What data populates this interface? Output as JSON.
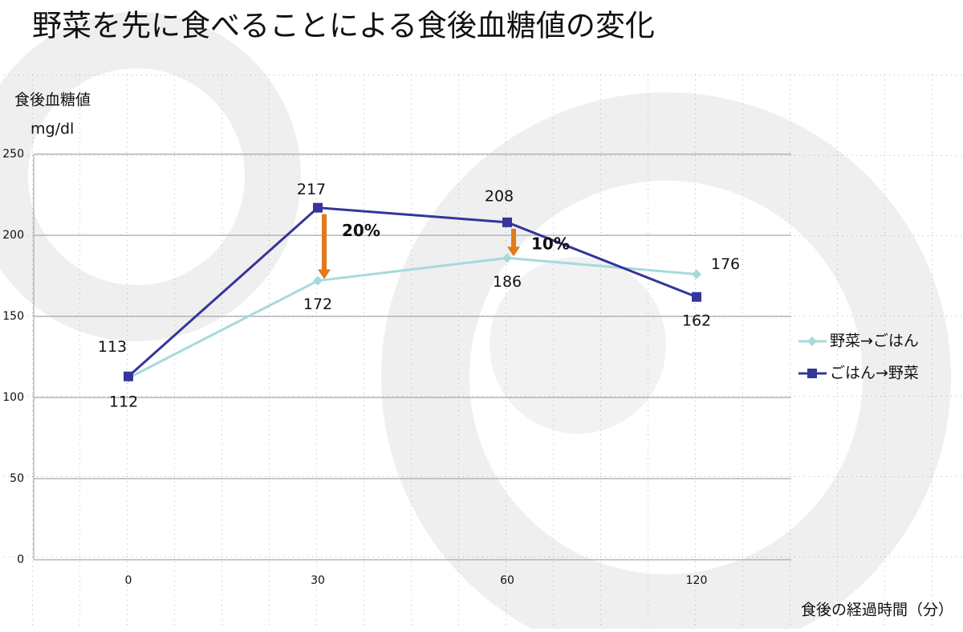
{
  "chart_data": {
    "type": "line",
    "title": "野菜を先に食べることによる食後血糖値の変化",
    "y_label": "食後血糖値",
    "y_unit": "mg/dl",
    "x_label": "食後の経過時間（分）",
    "categories": [
      "0",
      "30",
      "60",
      "120"
    ],
    "series": [
      {
        "name": "野菜→ごはん",
        "color": "#a6dada",
        "marker": "diamond",
        "values": [
          112,
          172,
          186,
          176
        ]
      },
      {
        "name": "ごはん→野菜",
        "color": "#35359a",
        "marker": "square",
        "values": [
          113,
          217,
          208,
          162
        ]
      }
    ],
    "ylim": [
      0,
      250
    ],
    "yticks": [
      0,
      50,
      100,
      150,
      200,
      250
    ],
    "grid": true,
    "annotations": [
      "20%",
      "10%"
    ],
    "annotation_color": "#e8302a",
    "arrow_color": "#e07a1a"
  }
}
